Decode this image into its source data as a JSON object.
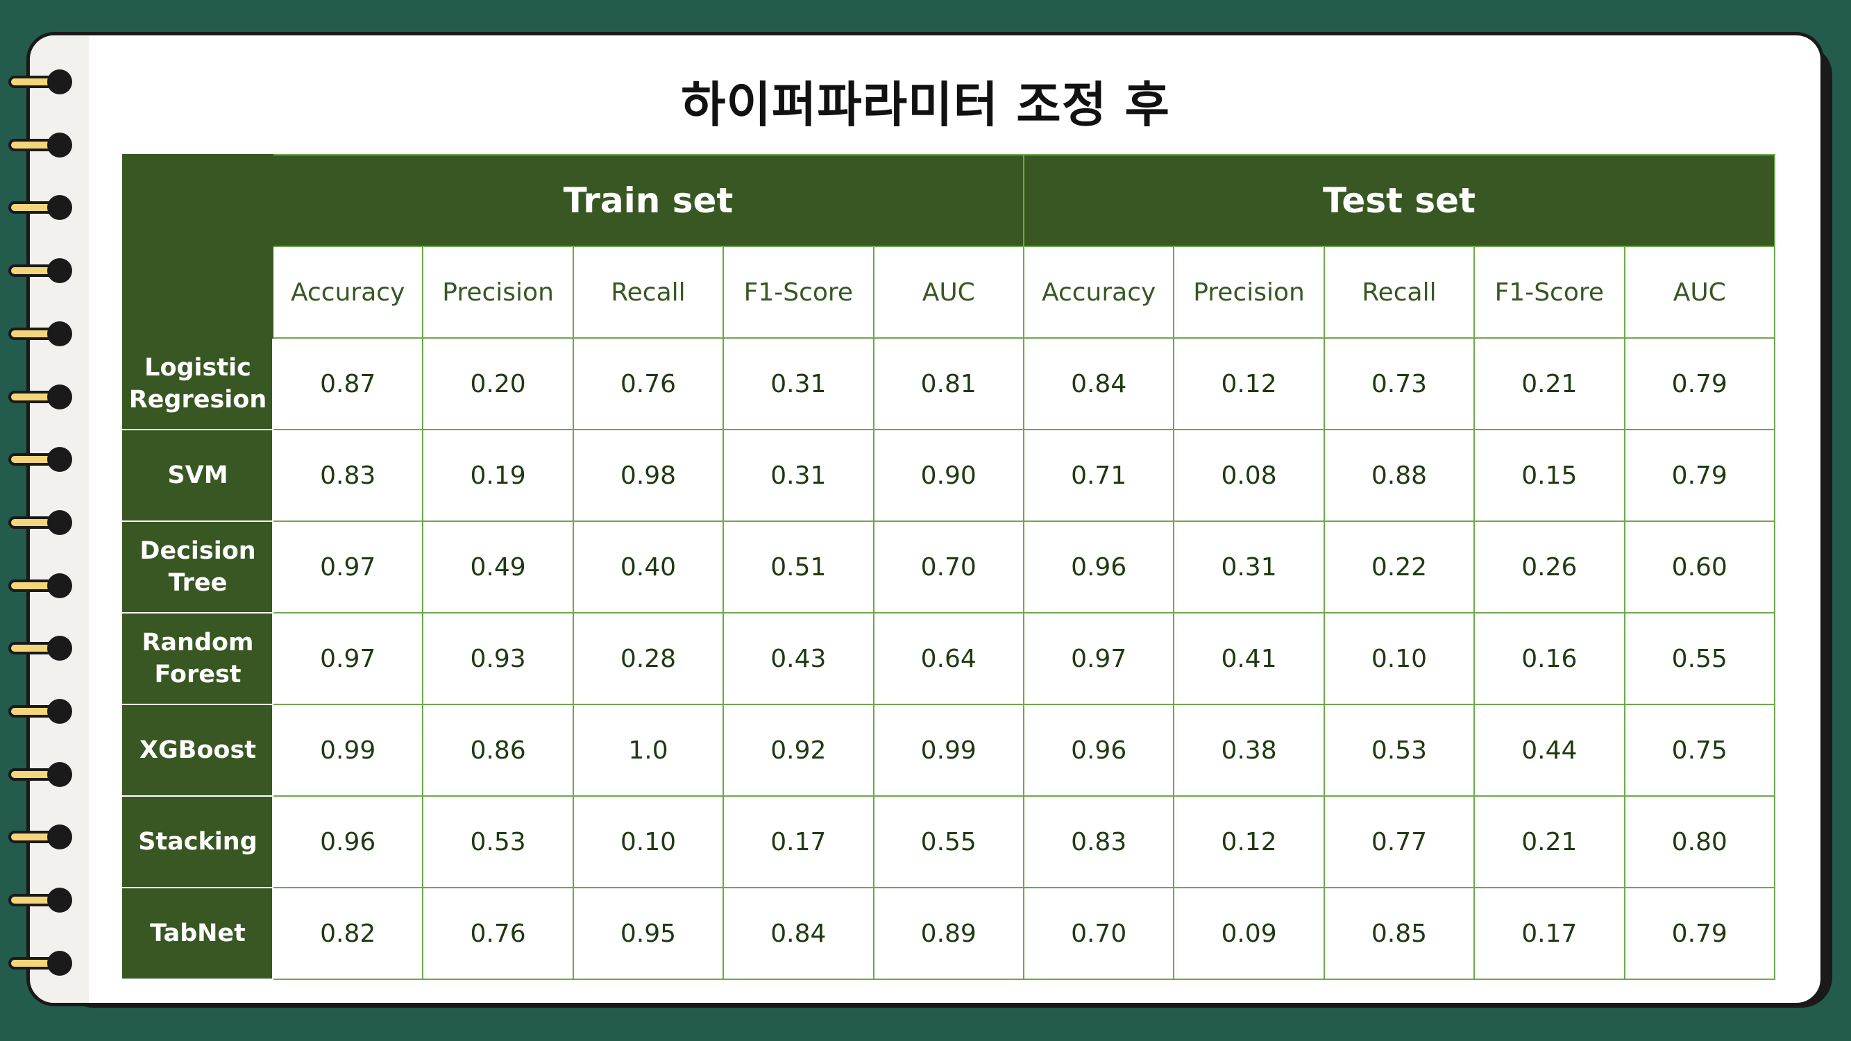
{
  "title": "하이퍼파라미터 조정 후",
  "table": {
    "groups": [
      "Train set",
      "Test set"
    ],
    "metrics": [
      "Accuracy",
      "Precision",
      "Recall",
      "F1-Score",
      "AUC"
    ],
    "rows": [
      {
        "model": "Logistic Regresion",
        "model_lines": [
          "Logistic",
          "Regresion"
        ],
        "values": [
          "0.87",
          "0.20",
          "0.76",
          "0.31",
          "0.81",
          "0.84",
          "0.12",
          "0.73",
          "0.21",
          "0.79"
        ]
      },
      {
        "model": "SVM",
        "model_lines": [
          "SVM"
        ],
        "values": [
          "0.83",
          "0.19",
          "0.98",
          "0.31",
          "0.90",
          "0.71",
          "0.08",
          "0.88",
          "0.15",
          "0.79"
        ]
      },
      {
        "model": "Decision Tree",
        "model_lines": [
          "Decision",
          "Tree"
        ],
        "values": [
          "0.97",
          "0.49",
          "0.40",
          "0.51",
          "0.70",
          "0.96",
          "0.31",
          "0.22",
          "0.26",
          "0.60"
        ]
      },
      {
        "model": "Random Forest",
        "model_lines": [
          "Random",
          "Forest"
        ],
        "values": [
          "0.97",
          "0.93",
          "0.28",
          "0.43",
          "0.64",
          "0.97",
          "0.41",
          "0.10",
          "0.16",
          "0.55"
        ]
      },
      {
        "model": "XGBoost",
        "model_lines": [
          "XGBoost"
        ],
        "values": [
          "0.99",
          "0.86",
          "1.0",
          "0.92",
          "0.99",
          "0.96",
          "0.38",
          "0.53",
          "0.44",
          "0.75"
        ]
      },
      {
        "model": "Stacking",
        "model_lines": [
          "Stacking"
        ],
        "values": [
          "0.96",
          "0.53",
          "0.10",
          "0.17",
          "0.55",
          "0.83",
          "0.12",
          "0.77",
          "0.21",
          "0.80"
        ]
      },
      {
        "model": "TabNet",
        "model_lines": [
          "TabNet"
        ],
        "values": [
          "0.82",
          "0.76",
          "0.95",
          "0.84",
          "0.89",
          "0.70",
          "0.09",
          "0.85",
          "0.17",
          "0.79"
        ]
      }
    ]
  },
  "colors": {
    "background": "#235c4c",
    "header_green": "#385723",
    "grid_line": "#6ea84b",
    "ring_yellow": "#f4d67a"
  }
}
